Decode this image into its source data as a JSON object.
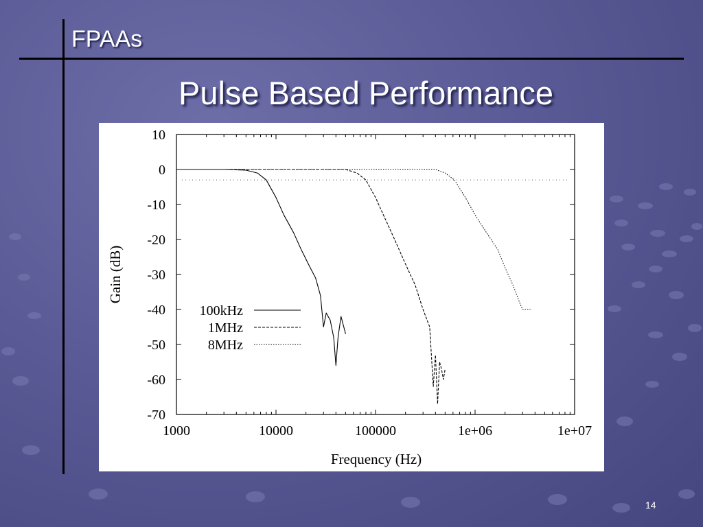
{
  "slide": {
    "section_title": "FPAAs",
    "title": "Pulse Based Performance",
    "page_number": "14"
  },
  "chart_data": {
    "type": "line",
    "title": "",
    "xlabel": "Frequency (Hz)",
    "ylabel": "Gain (dB)",
    "x_scale": "log",
    "xlim": [
      1000,
      10000000
    ],
    "ylim": [
      -70,
      10
    ],
    "x_ticks": [
      1000,
      10000,
      100000,
      1000000,
      10000000
    ],
    "x_tick_labels": [
      "1000",
      "10000",
      "100000",
      "1e+06",
      "1e+07"
    ],
    "y_ticks": [
      10,
      0,
      -10,
      -20,
      -30,
      -40,
      -50,
      -60,
      -70
    ],
    "y_tick_labels": [
      "10",
      "0",
      "-10",
      "-20",
      "-30",
      "-40",
      "-50",
      "-60",
      "-70"
    ],
    "grid": false,
    "legend_position": "left",
    "reference_line": {
      "y": -3
    },
    "series": [
      {
        "name": "100kHz",
        "style": "solid",
        "x": [
          1000,
          3000,
          5000,
          6500,
          8000,
          10000,
          12000,
          15000,
          18000,
          22000,
          25000,
          28000,
          30000,
          32000,
          35000,
          38000,
          40000,
          42000,
          45000,
          48000,
          50000
        ],
        "y": [
          0,
          0,
          -0.2,
          -1,
          -3,
          -8,
          -13,
          -18,
          -23,
          -28,
          -31,
          -36,
          -45,
          -41,
          -43,
          -48,
          -56,
          -48,
          -42,
          -45,
          -47
        ]
      },
      {
        "name": "1MHz",
        "style": "dashed",
        "x": [
          1000,
          10000,
          50000,
          65000,
          80000,
          100000,
          120000,
          150000,
          200000,
          250000,
          300000,
          350000,
          380000,
          400000,
          420000,
          440000,
          460000,
          480000,
          500000
        ],
        "y": [
          0,
          0,
          0,
          -1,
          -3,
          -8,
          -13,
          -19,
          -27,
          -33,
          -40,
          -45,
          -62,
          -53,
          -67,
          -55,
          -57,
          -60,
          -57
        ]
      },
      {
        "name": "8MHz",
        "style": "dotted",
        "x": [
          1000,
          100000,
          400000,
          500000,
          620000,
          800000,
          1000000,
          1300000,
          1700000,
          2000000,
          2400000,
          2800000,
          3000000,
          3300000,
          3600000
        ],
        "y": [
          0,
          0,
          0,
          -1,
          -3,
          -8,
          -13,
          -18,
          -23,
          -28,
          -33,
          -38,
          -40,
          -40,
          -40
        ]
      }
    ]
  }
}
